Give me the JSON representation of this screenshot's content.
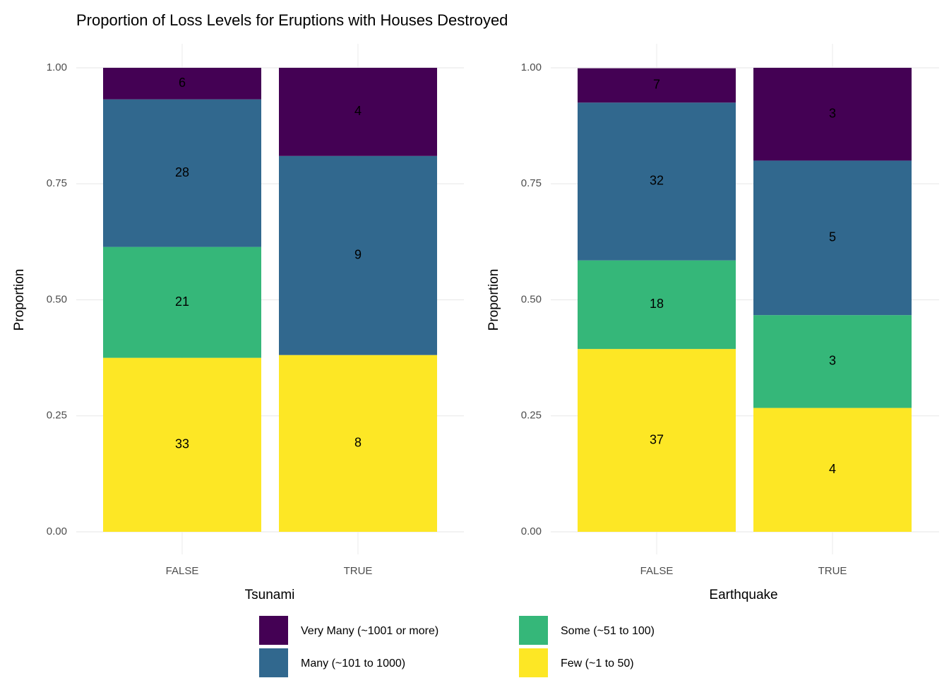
{
  "chart_data": [
    {
      "type": "stacked-bar",
      "title": "Proportion of Loss Levels for Eruptions with Houses Destroyed",
      "x_label": "Tsunami",
      "y_label": "Proportion",
      "categories": [
        "FALSE",
        "TRUE"
      ],
      "series": [
        {
          "name": "Few (~1 to 50)",
          "color": "#fde725",
          "values": [
            0.375,
            0.381
          ],
          "value_labels": [
            "33",
            "8"
          ]
        },
        {
          "name": "Some (~51 to 100)",
          "color": "#35b779",
          "values": [
            0.239,
            null
          ],
          "value_labels": [
            "21",
            null
          ]
        },
        {
          "name": "Many (~101 to 1000)",
          "color": "#31688e",
          "values": [
            0.318,
            0.429
          ],
          "value_labels": [
            "28",
            "9"
          ]
        },
        {
          "name": "Very Many (~1001 or more)",
          "color": "#440154",
          "values": [
            0.068,
            0.19
          ],
          "value_labels": [
            "6",
            "4"
          ]
        }
      ],
      "ylim": [
        0,
        1
      ],
      "yticks": [
        {
          "value": 0,
          "label": "0.00"
        },
        {
          "value": 0.25,
          "label": "0.25"
        },
        {
          "value": 0.5,
          "label": "0.50"
        },
        {
          "value": 0.75,
          "label": "0.75"
        },
        {
          "value": 1,
          "label": "1.00"
        }
      ],
      "grid": true
    },
    {
      "type": "stacked-bar",
      "x_label": "Earthquake",
      "y_label": "Proportion",
      "categories": [
        "FALSE",
        "TRUE"
      ],
      "series": [
        {
          "color": "#fde725",
          "values": [
            0.394,
            0.267
          ],
          "value_labels": [
            "37",
            "4"
          ]
        },
        {
          "color": "#35b779",
          "values": [
            0.191,
            0.2
          ],
          "value_labels": [
            "18",
            "3"
          ]
        },
        {
          "color": "#31688e",
          "values": [
            0.34,
            0.333
          ],
          "value_labels": [
            "32",
            "5"
          ]
        },
        {
          "color": "#440154",
          "values": [
            0.074,
            0.2
          ],
          "value_labels": [
            "7",
            "3"
          ]
        }
      ],
      "ylim": [
        0,
        1
      ],
      "yticks": [
        {
          "value": 0,
          "label": "0.00"
        },
        {
          "value": 0.25,
          "label": "0.25"
        },
        {
          "value": 0.5,
          "label": "0.50"
        },
        {
          "value": 0.75,
          "label": "0.75"
        },
        {
          "value": 1,
          "label": "1.00"
        }
      ],
      "grid": true
    }
  ]
}
